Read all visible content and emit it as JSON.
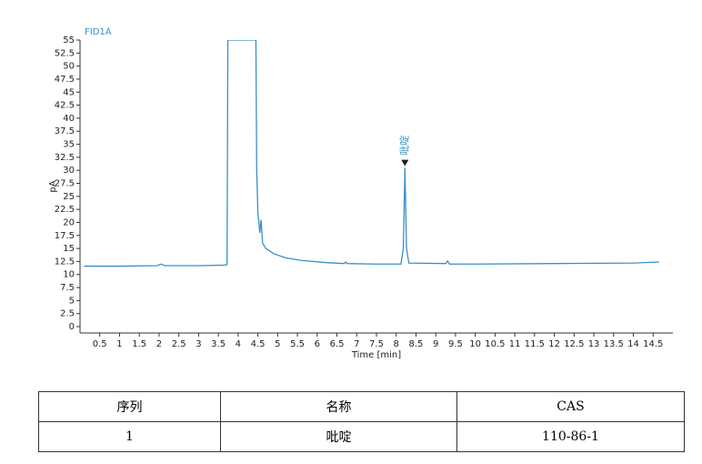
{
  "chart_data": {
    "type": "line",
    "title": "FID1A",
    "xlabel": "Time [min]",
    "ylabel": "pA",
    "x": [
      0.1,
      1.0,
      1.95,
      2.05,
      2.15,
      3.0,
      3.65,
      3.72,
      3.74,
      4.45,
      4.47,
      4.5,
      4.55,
      4.58,
      4.62,
      4.7,
      4.9,
      5.2,
      5.6,
      6.2,
      6.68,
      6.72,
      6.76,
      7.5,
      8.12,
      8.18,
      8.22,
      8.26,
      8.32,
      9.25,
      9.3,
      9.35,
      10.0,
      12.0,
      14.0,
      14.65
    ],
    "series": [
      {
        "name": "FID1A",
        "color": "#3a8fc6",
        "values": [
          11.6,
          11.6,
          11.7,
          12.0,
          11.7,
          11.7,
          11.8,
          11.9,
          55,
          55,
          30,
          22,
          18,
          20.5,
          16,
          15,
          14,
          13.2,
          12.7,
          12.3,
          12.1,
          12.4,
          12.1,
          12.0,
          12.0,
          15,
          30.5,
          15,
          12.2,
          12.1,
          12.6,
          12.0,
          12.0,
          12.1,
          12.2,
          12.4
        ]
      }
    ],
    "annotations": [
      {
        "text": "吡啶",
        "x": 8.22,
        "y": 31.5
      }
    ],
    "xlim": [
      0,
      15
    ],
    "xticks": [
      0.5,
      1,
      1.5,
      2,
      2.5,
      3,
      3.5,
      4,
      4.5,
      5,
      5.5,
      6,
      6.5,
      7,
      7.5,
      8,
      8.5,
      9,
      9.5,
      10,
      10.5,
      11,
      11.5,
      12,
      12.5,
      13,
      13.5,
      14,
      14.5
    ],
    "ylim": [
      0,
      55
    ],
    "yticks": [
      0,
      2.5,
      5,
      7.5,
      10,
      12.5,
      15,
      17.5,
      20,
      22.5,
      25,
      27.5,
      30,
      32.5,
      35,
      37.5,
      40,
      42.5,
      45,
      47.5,
      50,
      52.5,
      55
    ]
  },
  "table": {
    "header": [
      "序列",
      "名称",
      "CAS"
    ],
    "rows": [
      [
        "1",
        "吡啶",
        "110-86-1"
      ]
    ]
  }
}
